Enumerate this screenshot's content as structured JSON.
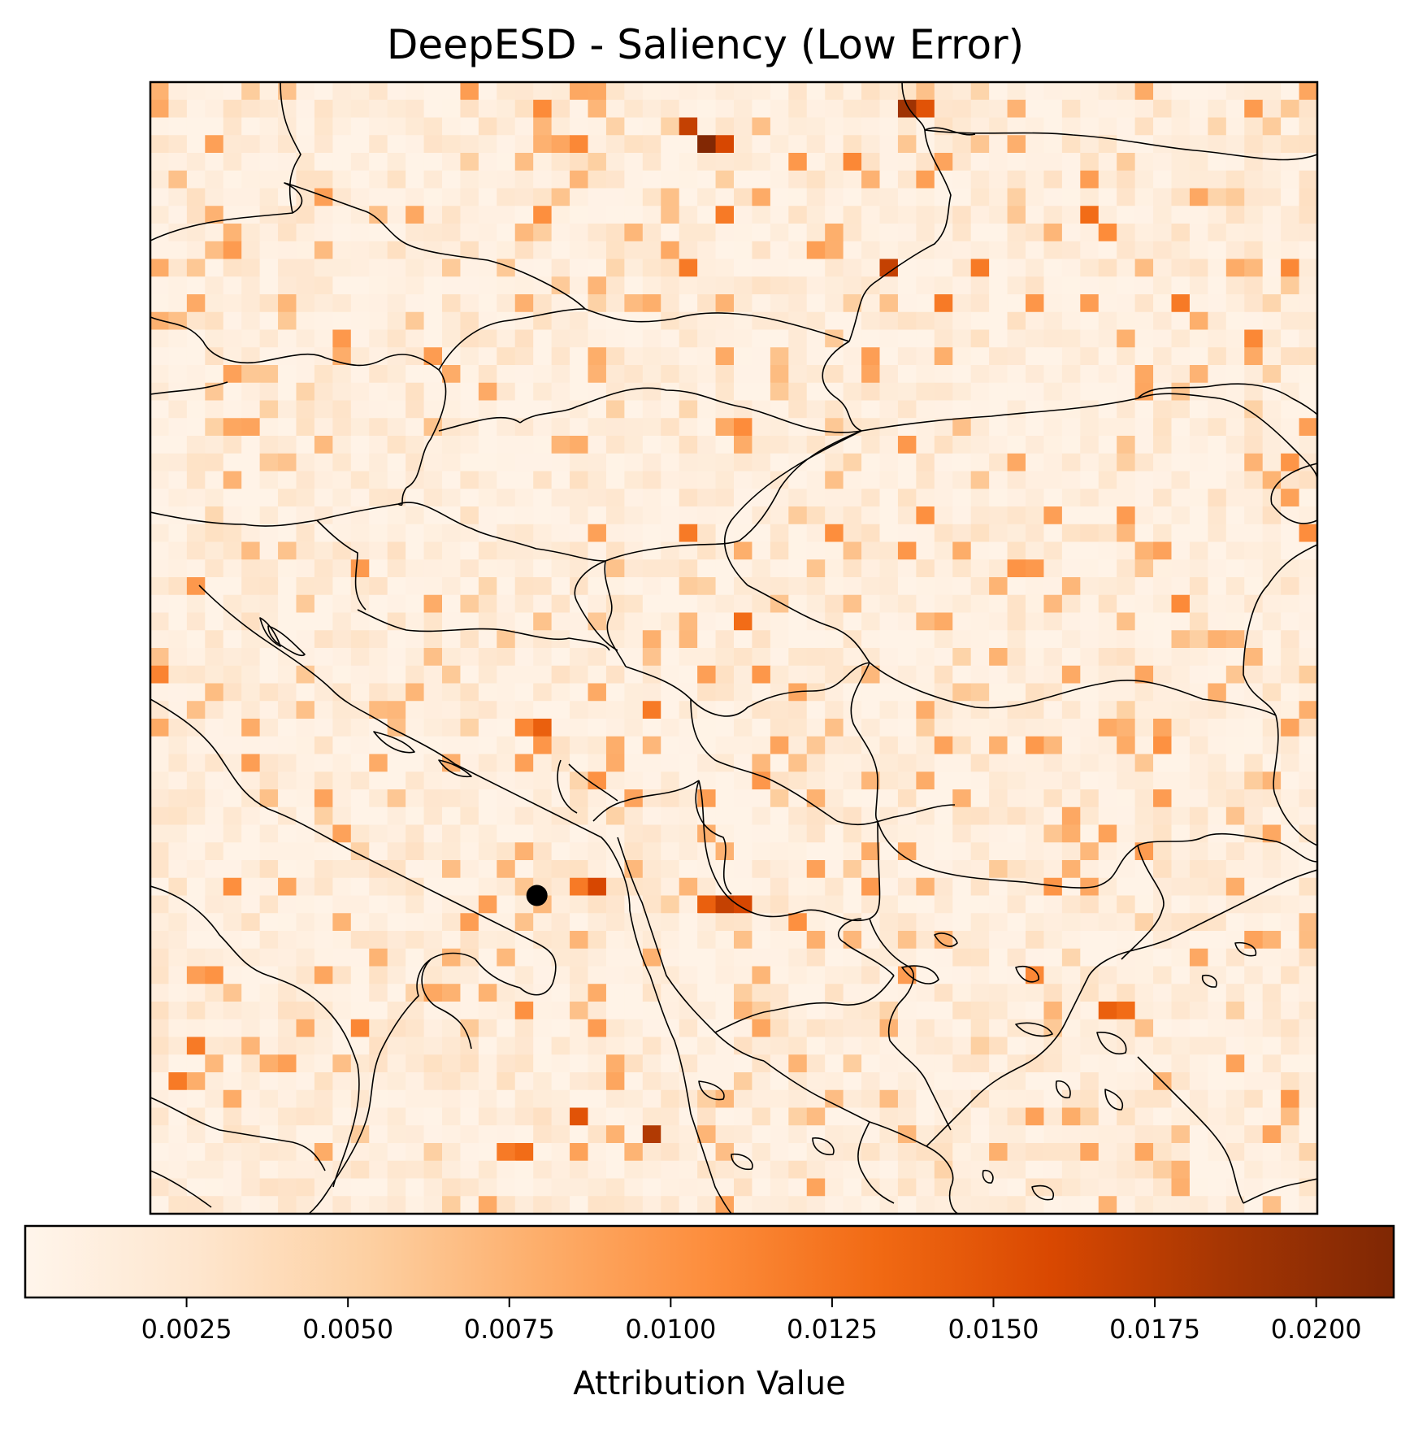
{
  "chart_data": {
    "type": "heatmap",
    "title": "DeepESD - Saliency (Low Error)",
    "grid_size": [
      64,
      64
    ],
    "colormap": "Oranges",
    "colors": {
      "cmap_stops": [
        "#fff5eb",
        "#fee6ce",
        "#fdd0a2",
        "#fdae6b",
        "#fd8d3c",
        "#f16913",
        "#d94801",
        "#a63603",
        "#7f2704"
      ],
      "point_marker": "#000000",
      "coastline": "#000000"
    },
    "colorbar": {
      "label": "Attribution Value",
      "range": [
        0.0,
        0.0212
      ],
      "ticks": [
        0.0025,
        0.005,
        0.0075,
        0.01,
        0.0125,
        0.015,
        0.0175,
        0.02
      ],
      "tick_labels": [
        "0.0025",
        "0.0050",
        "0.0075",
        "0.0100",
        "0.0125",
        "0.0150",
        "0.0175",
        "0.0200"
      ]
    },
    "base_level": 0.0022,
    "hotspots": [
      {
        "col": 30,
        "row": 3,
        "value": 0.021
      },
      {
        "col": 29,
        "row": 2,
        "value": 0.017
      },
      {
        "col": 31,
        "row": 3,
        "value": 0.016
      },
      {
        "col": 41,
        "row": 1,
        "value": 0.019
      },
      {
        "col": 42,
        "row": 1,
        "value": 0.015
      },
      {
        "col": 40,
        "row": 10,
        "value": 0.017
      },
      {
        "col": 51,
        "row": 7,
        "value": 0.013
      },
      {
        "col": 31,
        "row": 7,
        "value": 0.012
      },
      {
        "col": 29,
        "row": 10,
        "value": 0.012
      },
      {
        "col": 23,
        "row": 3,
        "value": 0.011
      },
      {
        "col": 38,
        "row": 4,
        "value": 0.011
      },
      {
        "col": 45,
        "row": 10,
        "value": 0.012
      },
      {
        "col": 56,
        "row": 12,
        "value": 0.012
      },
      {
        "col": 43,
        "row": 12,
        "value": 0.012
      },
      {
        "col": 32,
        "row": 30,
        "value": 0.013
      },
      {
        "col": 29,
        "row": 25,
        "value": 0.012
      },
      {
        "col": 21,
        "row": 36,
        "value": 0.014
      },
      {
        "col": 20,
        "row": 36,
        "value": 0.011
      },
      {
        "col": 27,
        "row": 35,
        "value": 0.012
      },
      {
        "col": 23,
        "row": 45,
        "value": 0.012
      },
      {
        "col": 24,
        "row": 45,
        "value": 0.016
      },
      {
        "col": 31,
        "row": 46,
        "value": 0.017
      },
      {
        "col": 32,
        "row": 46,
        "value": 0.016
      },
      {
        "col": 30,
        "row": 46,
        "value": 0.014
      },
      {
        "col": 52,
        "row": 52,
        "value": 0.014
      },
      {
        "col": 53,
        "row": 52,
        "value": 0.013
      },
      {
        "col": 23,
        "row": 58,
        "value": 0.015
      },
      {
        "col": 27,
        "row": 59,
        "value": 0.018
      },
      {
        "col": 20,
        "row": 60,
        "value": 0.013
      },
      {
        "col": 19,
        "row": 60,
        "value": 0.012
      },
      {
        "col": 1,
        "row": 56,
        "value": 0.012
      },
      {
        "col": 2,
        "row": 54,
        "value": 0.012
      },
      {
        "col": 48,
        "row": 50,
        "value": 0.011
      },
      {
        "col": 62,
        "row": 10,
        "value": 0.011
      },
      {
        "col": 60,
        "row": 14,
        "value": 0.011
      }
    ],
    "marker_points": [
      {
        "lon_cell": 21.2,
        "lat_cell": 46.0
      }
    ]
  }
}
